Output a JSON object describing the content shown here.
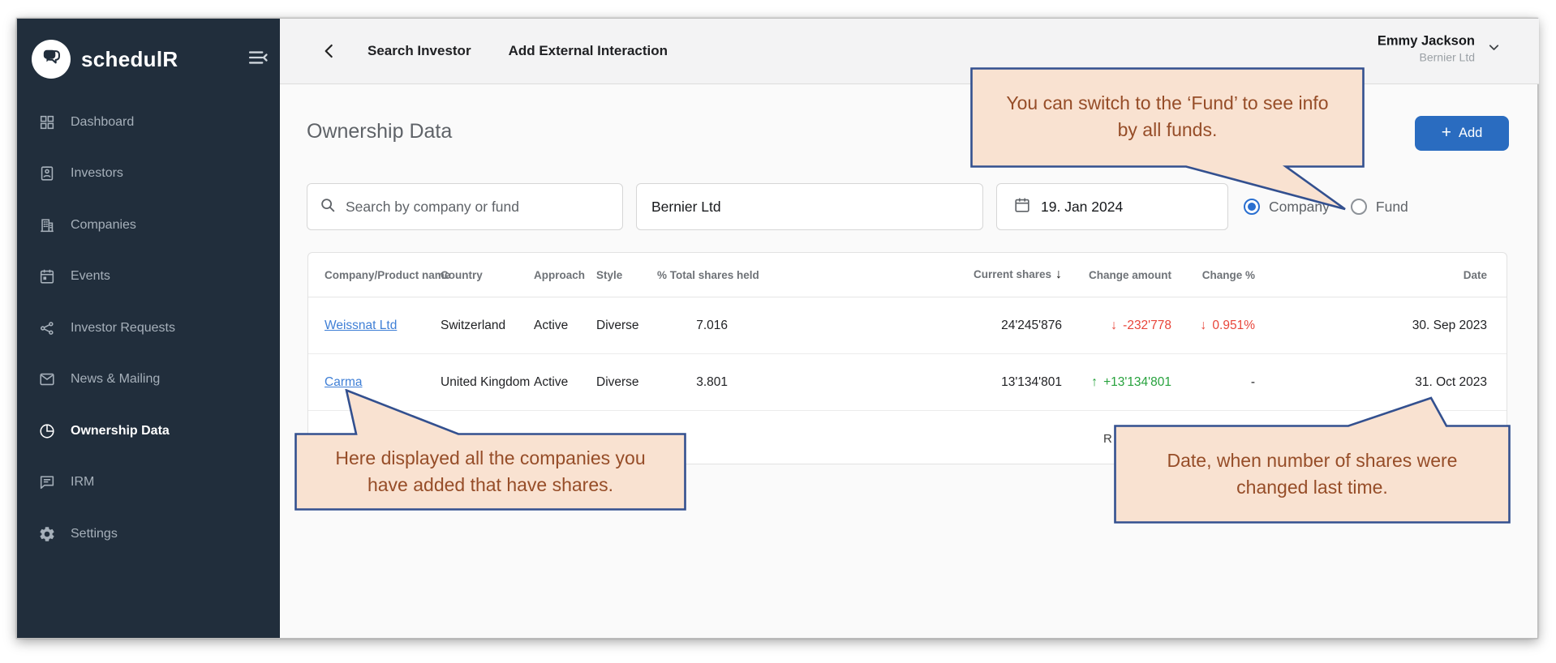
{
  "app": {
    "logo_text": "schedulR"
  },
  "sidebar": {
    "items": [
      {
        "label": "Dashboard",
        "icon": "dashboard-icon",
        "active": false
      },
      {
        "label": "Investors",
        "icon": "investors-icon",
        "active": false
      },
      {
        "label": "Companies",
        "icon": "companies-icon",
        "active": false
      },
      {
        "label": "Events",
        "icon": "events-icon",
        "active": false
      },
      {
        "label": "Investor Requests",
        "icon": "share-icon",
        "active": false
      },
      {
        "label": "News & Mailing",
        "icon": "mail-icon",
        "active": false
      },
      {
        "label": "Ownership Data",
        "icon": "pie-chart-icon",
        "active": true
      },
      {
        "label": "IRM",
        "icon": "chat-icon",
        "active": false
      },
      {
        "label": "Settings",
        "icon": "gear-icon",
        "active": false
      }
    ]
  },
  "topbar": {
    "nav": [
      {
        "label": "Search Investor"
      },
      {
        "label": "Add External Interaction"
      }
    ],
    "user": {
      "name": "Emmy Jackson",
      "company": "Bernier Ltd"
    }
  },
  "page": {
    "title": "Ownership Data",
    "add_button_label": "Add"
  },
  "filters": {
    "search_placeholder": "Search by company or fund",
    "company_value": "Bernier Ltd",
    "date_value": "19. Jan 2024",
    "view_options": [
      {
        "label": "Company",
        "selected": true
      },
      {
        "label": "Fund",
        "selected": false
      }
    ]
  },
  "table": {
    "columns": [
      {
        "label": "Company/Product name",
        "align": "left"
      },
      {
        "label": "Country",
        "align": "left"
      },
      {
        "label": "Approach",
        "align": "left"
      },
      {
        "label": "Style",
        "align": "left"
      },
      {
        "label": "% Total shares held",
        "align": "right"
      },
      {
        "label": "Current shares",
        "align": "right",
        "sorted": true
      },
      {
        "label": "Change amount",
        "align": "right"
      },
      {
        "label": "Change %",
        "align": "right"
      },
      {
        "label": "Date",
        "align": "right"
      }
    ],
    "rows": [
      {
        "name": "Weissnat Ltd",
        "country": "Switzerland",
        "approach": "Active",
        "style": "Diverse",
        "pct_total": "7.016",
        "current_shares": "24'245'876",
        "change_amount": {
          "value": "-232'778",
          "direction": "down"
        },
        "change_pct": {
          "value": "0.951%",
          "direction": "down"
        },
        "date": "30. Sep 2023"
      },
      {
        "name": "Carma",
        "country": "United Kingdom",
        "approach": "Active",
        "style": "Diverse",
        "pct_total": "3.801",
        "current_shares": "13'134'801",
        "change_amount": {
          "value": "+13'134'801",
          "direction": "up"
        },
        "change_pct": {
          "value": "-",
          "direction": "none"
        },
        "date": "31. Oct 2023"
      }
    ]
  },
  "pagination": {
    "visible_fragment": "R"
  },
  "callouts": [
    {
      "id": "fund",
      "lines": [
        "You can switch to the ‘Fund’ to see info",
        "by all funds."
      ]
    },
    {
      "id": "companies",
      "lines": [
        "Here displayed all the companies you",
        "have added that have shares."
      ]
    },
    {
      "id": "date",
      "lines": [
        "Date, when number of shares were",
        "changed last time."
      ]
    }
  ],
  "colors": {
    "sidebar_bg": "#212e3c",
    "accent_blue": "#2a6cc0",
    "link_blue": "#3f7fd6",
    "negative_red": "#e8453a",
    "positive_green": "#27a23d",
    "radio_blue": "#2a6fd0",
    "callout_bg": "#f9e2d1",
    "callout_border": "#33508f",
    "callout_text": "#964d28"
  }
}
